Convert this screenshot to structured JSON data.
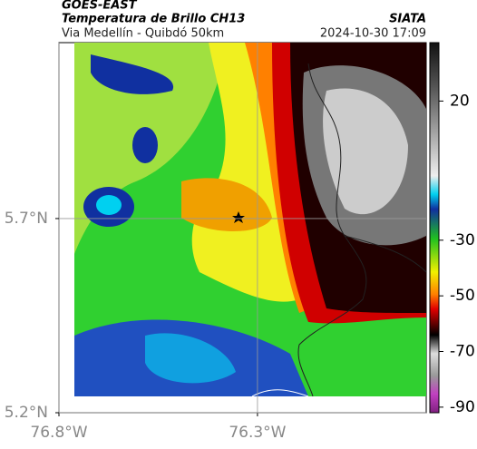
{
  "header": {
    "satellite": "GOES-EAST",
    "product": "Temperatura de Brillo CH13",
    "source": "SIATA",
    "route": "Via Medellín - Quibdó 50km",
    "datetime": "2024-10-30 17:09"
  },
  "map": {
    "lon_lim": [
      -76.8,
      -75.875
    ],
    "lat_lim": [
      5.2,
      6.153
    ],
    "lon_ticks": [
      {
        "value": -76.8,
        "label": "76.8°W"
      },
      {
        "value": -76.3,
        "label": "76.3°W"
      }
    ],
    "lat_ticks": [
      {
        "value": 5.7,
        "label": "5.7°N"
      },
      {
        "value": 5.2,
        "label": "5.2°N"
      }
    ],
    "grid": true
  },
  "colorbar": {
    "lim": [
      -92,
      41
    ],
    "ticks": [
      20,
      -30,
      -50,
      -70,
      -90
    ]
  }
}
